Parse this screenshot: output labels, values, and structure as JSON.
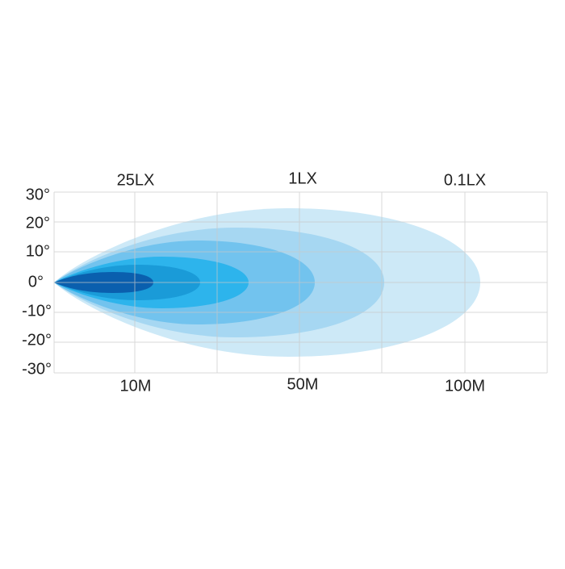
{
  "lux_labels": [
    "25LX",
    "1LX",
    "0.1LX"
  ],
  "angle_labels": [
    "30°",
    "20°",
    "10°",
    "0°",
    "-10°",
    "-20°",
    "-30°"
  ],
  "distance_labels": [
    "10M",
    "50M",
    "100M"
  ]
}
